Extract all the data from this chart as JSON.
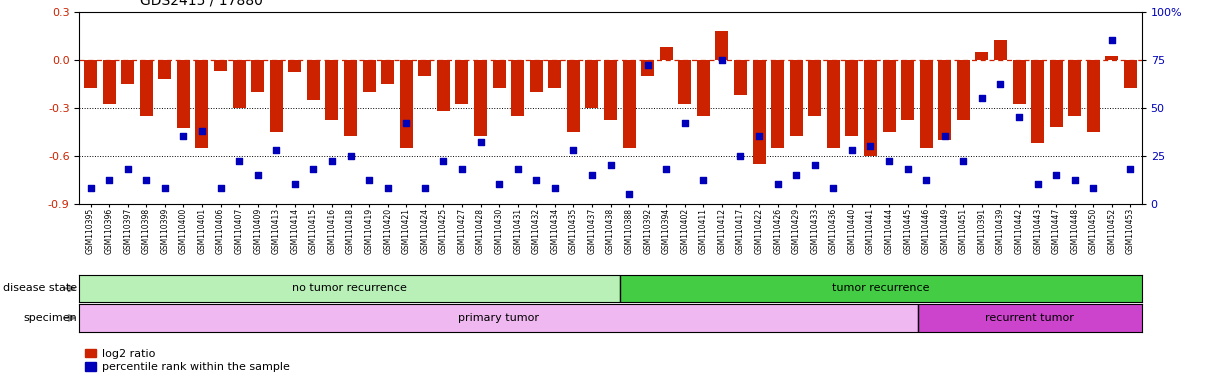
{
  "title": "GDS2415 / 17880",
  "samples": [
    "GSM110395",
    "GSM110396",
    "GSM110397",
    "GSM110398",
    "GSM110399",
    "GSM110400",
    "GSM110401",
    "GSM110406",
    "GSM110407",
    "GSM110409",
    "GSM110413",
    "GSM110414",
    "GSM110415",
    "GSM110416",
    "GSM110418",
    "GSM110419",
    "GSM110420",
    "GSM110421",
    "GSM110424",
    "GSM110425",
    "GSM110427",
    "GSM110428",
    "GSM110430",
    "GSM110431",
    "GSM110432",
    "GSM110434",
    "GSM110435",
    "GSM110437",
    "GSM110438",
    "GSM110388",
    "GSM110392",
    "GSM110394",
    "GSM110402",
    "GSM110411",
    "GSM110412",
    "GSM110417",
    "GSM110422",
    "GSM110426",
    "GSM110429",
    "GSM110433",
    "GSM110436",
    "GSM110440",
    "GSM110441",
    "GSM110444",
    "GSM110445",
    "GSM110446",
    "GSM110449",
    "GSM110451",
    "GSM110391",
    "GSM110439",
    "GSM110442",
    "GSM110443",
    "GSM110447",
    "GSM110448",
    "GSM110450",
    "GSM110452",
    "GSM110453"
  ],
  "log2_ratio": [
    -0.18,
    -0.28,
    -0.15,
    -0.35,
    -0.12,
    -0.43,
    -0.55,
    -0.07,
    -0.3,
    -0.2,
    -0.45,
    -0.08,
    -0.25,
    -0.38,
    -0.48,
    -0.2,
    -0.15,
    -0.55,
    -0.1,
    -0.32,
    -0.28,
    -0.48,
    -0.18,
    -0.35,
    -0.2,
    -0.18,
    -0.45,
    -0.3,
    -0.38,
    -0.55,
    -0.1,
    0.08,
    -0.28,
    -0.35,
    0.18,
    -0.22,
    -0.65,
    -0.55,
    -0.48,
    -0.35,
    -0.55,
    -0.48,
    -0.6,
    -0.45,
    -0.38,
    -0.55,
    -0.5,
    -0.38,
    0.05,
    0.12,
    -0.28,
    -0.52,
    -0.42,
    -0.35,
    -0.45,
    0.02,
    -0.18
  ],
  "percentile": [
    8,
    12,
    18,
    12,
    8,
    35,
    38,
    8,
    22,
    15,
    28,
    10,
    18,
    22,
    25,
    12,
    8,
    42,
    8,
    22,
    18,
    32,
    10,
    18,
    12,
    8,
    28,
    15,
    20,
    5,
    72,
    18,
    42,
    12,
    75,
    25,
    35,
    10,
    15,
    20,
    8,
    28,
    30,
    22,
    18,
    12,
    35,
    22,
    55,
    62,
    45,
    10,
    15,
    12,
    8,
    85,
    18
  ],
  "no_recurrence_count": 29,
  "total_samples": 57,
  "primary_tumor_count": 45,
  "ylim_min": -0.9,
  "ylim_max": 0.3,
  "yticks_left": [
    -0.9,
    -0.6,
    -0.3,
    0.0,
    0.3
  ],
  "yticks_right": [
    0,
    25,
    50,
    75,
    100
  ],
  "bar_color": "#cc2200",
  "dot_color": "#0000bb",
  "no_recur_color": "#b8f0b8",
  "recur_color": "#44cc44",
  "primary_color": "#f0b8f0",
  "recurrent_color": "#cc44cc",
  "disease_state_label": "disease state",
  "specimen_label": "specimen",
  "no_recurrence_label": "no tumor recurrence",
  "recurrence_label": "tumor recurrence",
  "primary_tumor_label": "primary tumor",
  "recurrent_tumor_label": "recurrent tumor",
  "legend_bar_label": "log2 ratio",
  "legend_dot_label": "percentile rank within the sample"
}
